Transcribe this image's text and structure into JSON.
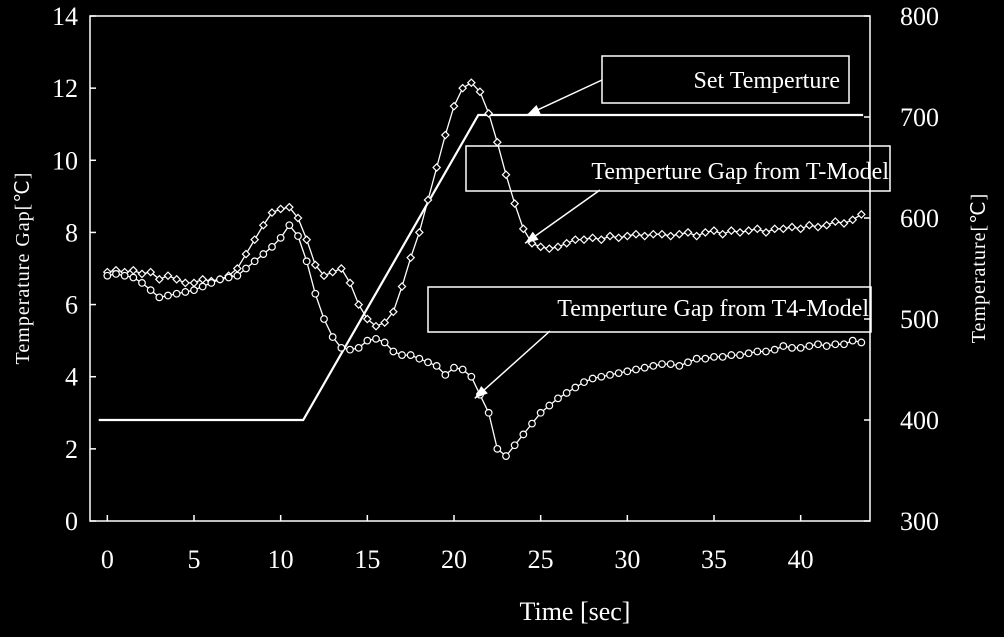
{
  "chart_data": {
    "type": "line",
    "xlabel": "Time [sec]",
    "ylabel_left": "Temperature Gap[℃]",
    "ylabel_right": "Temperature[℃]",
    "xlim": [
      -1,
      44
    ],
    "ylim_left": [
      0,
      14
    ],
    "ylim_right": [
      300,
      800
    ],
    "x_ticks": [
      0,
      5,
      10,
      15,
      20,
      25,
      30,
      35,
      40
    ],
    "y_ticks_left": [
      0,
      2,
      4,
      6,
      8,
      10,
      12,
      14
    ],
    "y_ticks_right": [
      300,
      400,
      500,
      600,
      700,
      800
    ],
    "grid": false,
    "legend": "none",
    "series": [
      {
        "name": "Set Temperture",
        "axis": "right",
        "marker": "none",
        "points": [
          [
            -0.5,
            400
          ],
          [
            11.3,
            400
          ],
          [
            21.4,
            702
          ],
          [
            43.6,
            702
          ]
        ]
      },
      {
        "name": "Temperture Gap from T-Model",
        "axis": "left",
        "marker": "diamond",
        "points": [
          [
            0,
            6.9
          ],
          [
            0.5,
            6.95
          ],
          [
            1,
            6.9
          ],
          [
            1.5,
            6.95
          ],
          [
            2,
            6.85
          ],
          [
            2.5,
            6.9
          ],
          [
            3,
            6.7
          ],
          [
            3.5,
            6.8
          ],
          [
            4,
            6.7
          ],
          [
            4.5,
            6.6
          ],
          [
            5,
            6.6
          ],
          [
            5.5,
            6.7
          ],
          [
            6,
            6.65
          ],
          [
            6.5,
            6.7
          ],
          [
            7,
            6.8
          ],
          [
            7.5,
            7.0
          ],
          [
            8,
            7.4
          ],
          [
            8.5,
            7.8
          ],
          [
            9,
            8.2
          ],
          [
            9.5,
            8.55
          ],
          [
            10,
            8.65
          ],
          [
            10.5,
            8.7
          ],
          [
            11,
            8.4
          ],
          [
            11.5,
            7.8
          ],
          [
            12,
            7.1
          ],
          [
            12.5,
            6.8
          ],
          [
            13,
            6.9
          ],
          [
            13.5,
            7.0
          ],
          [
            14,
            6.6
          ],
          [
            14.5,
            6.0
          ],
          [
            15,
            5.6
          ],
          [
            15.5,
            5.4
          ],
          [
            16,
            5.5
          ],
          [
            16.5,
            5.8
          ],
          [
            17,
            6.5
          ],
          [
            17.5,
            7.3
          ],
          [
            18,
            8.0
          ],
          [
            18.5,
            8.9
          ],
          [
            19,
            9.8
          ],
          [
            19.5,
            10.7
          ],
          [
            20,
            11.5
          ],
          [
            20.5,
            12.0
          ],
          [
            21,
            12.15
          ],
          [
            21.5,
            11.9
          ],
          [
            22,
            11.3
          ],
          [
            22.5,
            10.5
          ],
          [
            23,
            9.6
          ],
          [
            23.5,
            8.8
          ],
          [
            24,
            8.1
          ],
          [
            24.5,
            7.7
          ],
          [
            25,
            7.6
          ],
          [
            25.5,
            7.55
          ],
          [
            26,
            7.6
          ],
          [
            26.5,
            7.7
          ],
          [
            27,
            7.8
          ],
          [
            27.5,
            7.8
          ],
          [
            28,
            7.85
          ],
          [
            28.5,
            7.8
          ],
          [
            29,
            7.9
          ],
          [
            29.5,
            7.85
          ],
          [
            30,
            7.9
          ],
          [
            30.5,
            7.95
          ],
          [
            31,
            7.9
          ],
          [
            31.5,
            7.95
          ],
          [
            32,
            7.95
          ],
          [
            32.5,
            7.9
          ],
          [
            33,
            7.95
          ],
          [
            33.5,
            8.0
          ],
          [
            34,
            7.9
          ],
          [
            34.5,
            8.0
          ],
          [
            35,
            8.05
          ],
          [
            35.5,
            7.95
          ],
          [
            36,
            8.05
          ],
          [
            36.5,
            8.0
          ],
          [
            37,
            8.05
          ],
          [
            37.5,
            8.1
          ],
          [
            38,
            8.0
          ],
          [
            38.5,
            8.1
          ],
          [
            39,
            8.1
          ],
          [
            39.5,
            8.15
          ],
          [
            40,
            8.1
          ],
          [
            40.5,
            8.2
          ],
          [
            41,
            8.15
          ],
          [
            41.5,
            8.2
          ],
          [
            42,
            8.3
          ],
          [
            42.5,
            8.25
          ],
          [
            43,
            8.35
          ],
          [
            43.5,
            8.5
          ]
        ]
      },
      {
        "name": "Temperture Gap from T4-Model",
        "axis": "left",
        "marker": "circle",
        "points": [
          [
            0,
            6.8
          ],
          [
            0.5,
            6.85
          ],
          [
            1,
            6.8
          ],
          [
            1.5,
            6.75
          ],
          [
            2,
            6.6
          ],
          [
            2.5,
            6.4
          ],
          [
            3,
            6.2
          ],
          [
            3.5,
            6.25
          ],
          [
            4,
            6.3
          ],
          [
            4.5,
            6.35
          ],
          [
            5,
            6.4
          ],
          [
            5.5,
            6.5
          ],
          [
            6,
            6.6
          ],
          [
            6.5,
            6.7
          ],
          [
            7,
            6.75
          ],
          [
            7.5,
            6.8
          ],
          [
            8,
            7.0
          ],
          [
            8.5,
            7.2
          ],
          [
            9,
            7.4
          ],
          [
            9.5,
            7.6
          ],
          [
            10,
            7.85
          ],
          [
            10.5,
            8.2
          ],
          [
            11,
            7.9
          ],
          [
            11.5,
            7.2
          ],
          [
            12,
            6.3
          ],
          [
            12.5,
            5.6
          ],
          [
            13,
            5.1
          ],
          [
            13.5,
            4.8
          ],
          [
            14,
            4.75
          ],
          [
            14.5,
            4.8
          ],
          [
            15,
            5.0
          ],
          [
            15.5,
            5.05
          ],
          [
            16,
            4.95
          ],
          [
            16.5,
            4.7
          ],
          [
            17,
            4.6
          ],
          [
            17.5,
            4.6
          ],
          [
            18,
            4.5
          ],
          [
            18.5,
            4.4
          ],
          [
            19,
            4.3
          ],
          [
            19.5,
            4.05
          ],
          [
            20,
            4.25
          ],
          [
            20.5,
            4.2
          ],
          [
            21,
            4.0
          ],
          [
            21.5,
            3.5
          ],
          [
            22,
            3.0
          ],
          [
            22.5,
            2.0
          ],
          [
            23,
            1.8
          ],
          [
            23.5,
            2.1
          ],
          [
            24,
            2.4
          ],
          [
            24.5,
            2.7
          ],
          [
            25,
            3.0
          ],
          [
            25.5,
            3.2
          ],
          [
            26,
            3.4
          ],
          [
            26.5,
            3.55
          ],
          [
            27,
            3.7
          ],
          [
            27.5,
            3.85
          ],
          [
            28,
            3.95
          ],
          [
            28.5,
            4.0
          ],
          [
            29,
            4.05
          ],
          [
            29.5,
            4.1
          ],
          [
            30,
            4.15
          ],
          [
            30.5,
            4.2
          ],
          [
            31,
            4.25
          ],
          [
            31.5,
            4.3
          ],
          [
            32,
            4.35
          ],
          [
            32.5,
            4.35
          ],
          [
            33,
            4.3
          ],
          [
            33.5,
            4.4
          ],
          [
            34,
            4.5
          ],
          [
            34.5,
            4.5
          ],
          [
            35,
            4.55
          ],
          [
            35.5,
            4.55
          ],
          [
            36,
            4.6
          ],
          [
            36.5,
            4.6
          ],
          [
            37,
            4.65
          ],
          [
            37.5,
            4.7
          ],
          [
            38,
            4.7
          ],
          [
            38.5,
            4.75
          ],
          [
            39,
            4.85
          ],
          [
            39.5,
            4.8
          ],
          [
            40,
            4.8
          ],
          [
            40.5,
            4.85
          ],
          [
            41,
            4.9
          ],
          [
            41.5,
            4.85
          ],
          [
            42,
            4.9
          ],
          [
            42.5,
            4.9
          ],
          [
            43,
            5.0
          ],
          [
            43.5,
            4.95
          ]
        ]
      }
    ],
    "annotations": [
      {
        "text": "Set Temperture",
        "target": [
          24.2,
          702
        ],
        "target_axis": "right"
      },
      {
        "text": "Temperture Gap from T-Model",
        "target": [
          24.1,
          7.7
        ],
        "target_axis": "left"
      },
      {
        "text": "Temperture Gap from T4-Model",
        "target": [
          21.2,
          3.4
        ],
        "target_axis": "left"
      }
    ]
  }
}
